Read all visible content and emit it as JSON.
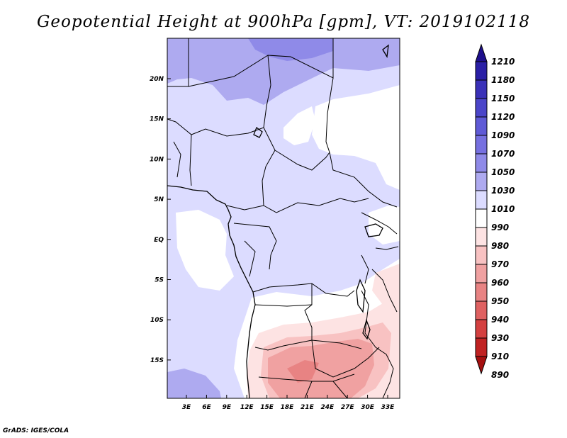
{
  "title": "Geopotential Height at 900hPa [gpm], VT: 2019102118",
  "credit": "GrADS: IGES/COLA",
  "lat_labels": [
    "20N",
    "15N",
    "10N",
    "5N",
    "EQ",
    "5S",
    "10S",
    "15S"
  ],
  "lon_labels": [
    "3E",
    "6E",
    "9E",
    "12E",
    "15E",
    "18E",
    "21E",
    "24E",
    "27E",
    "30E",
    "33E"
  ],
  "colorbar": {
    "labels": [
      "1210",
      "1180",
      "1150",
      "1120",
      "1090",
      "1070",
      "1050",
      "1030",
      "1010",
      "990",
      "980",
      "970",
      "960",
      "950",
      "940",
      "930",
      "910",
      "890"
    ],
    "colors": [
      "#1e0f8c",
      "#2a1fa6",
      "#3a31b8",
      "#4b45c9",
      "#5f5ad6",
      "#7670e0",
      "#8f8ae8",
      "#aeaaf0",
      "#dcdcff",
      "#ffffff",
      "#fde3e3",
      "#f8c2c2",
      "#f0a1a1",
      "#e88383",
      "#df6161",
      "#d44040",
      "#c02222",
      "#a50f0f"
    ]
  }
}
